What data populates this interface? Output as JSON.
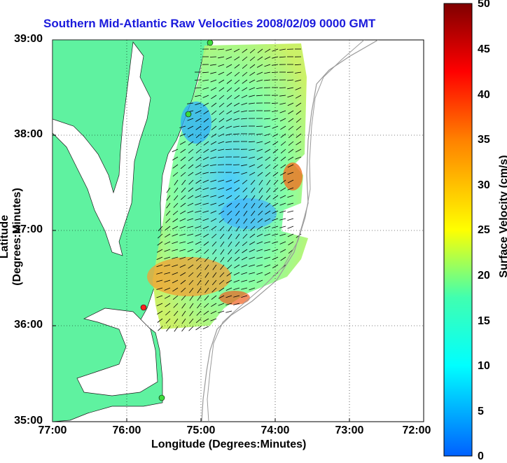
{
  "title": "Southern Mid-Atlantic Raw Velocities 2008/02/09 0000 GMT",
  "axes": {
    "xlabel": "Longitude (Degrees:Minutes)",
    "ylabel": "Latitude (Degrees:Minutes)",
    "xticks": [
      "77:00",
      "76:00",
      "75:00",
      "74:00",
      "73:00",
      "72:00"
    ],
    "yticks": [
      "39:00",
      "38:00",
      "37:00",
      "36:00",
      "35:00"
    ]
  },
  "colorbar": {
    "title": "Surface Velocity (cm/s)",
    "ticks": [
      "50",
      "45",
      "40",
      "35",
      "30",
      "25",
      "20",
      "15",
      "10",
      "5",
      "0"
    ],
    "colors": [
      "#0000ff",
      "#00ffff",
      "#7fff7f",
      "#ffff00",
      "#ff8000",
      "#ff0000",
      "#7f0000"
    ]
  },
  "colors": {
    "land": "#5ff2a0",
    "title": "#1a1adc",
    "station_green": "#3ddc3d",
    "station_red": "#ff2020",
    "bathymetry": "#999999"
  },
  "map": {
    "lon_range": [
      -77,
      -72
    ],
    "lat_range": [
      35,
      39
    ],
    "grid": "dotted"
  }
}
